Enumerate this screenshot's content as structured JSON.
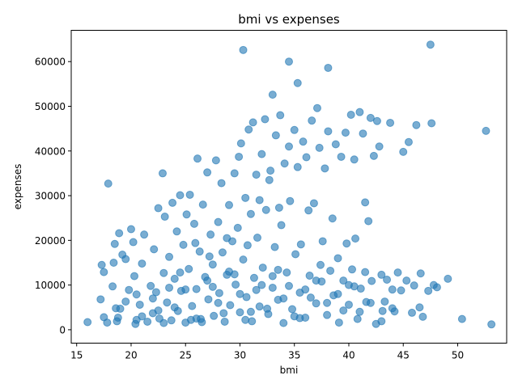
{
  "chart_data": {
    "type": "scatter",
    "title": "bmi vs expenses",
    "xlabel": "bmi",
    "ylabel": "expenses",
    "xlim": [
      14.5,
      54.5
    ],
    "ylim": [
      -3000,
      67000
    ],
    "xticks": [
      15,
      20,
      25,
      30,
      35,
      40,
      45,
      50
    ],
    "yticks": [
      0,
      10000,
      20000,
      30000,
      40000,
      50000,
      60000
    ],
    "ytick_labels": [
      "0",
      "10000",
      "20000",
      "30000",
      "40000",
      "50000",
      "60000"
    ],
    "grid": false,
    "marker_color": "#1f77b4",
    "marker_alpha": 0.6,
    "points": [
      [
        16.0,
        1700
      ],
      [
        17.2,
        6800
      ],
      [
        17.3,
        14500
      ],
      [
        17.5,
        12900
      ],
      [
        17.5,
        2800
      ],
      [
        17.8,
        1600
      ],
      [
        17.9,
        32700
      ],
      [
        18.3,
        9700
      ],
      [
        18.4,
        15000
      ],
      [
        18.5,
        19200
      ],
      [
        18.6,
        4800
      ],
      [
        18.7,
        1900
      ],
      [
        18.9,
        21600
      ],
      [
        19.0,
        4700
      ],
      [
        19.2,
        16800
      ],
      [
        19.5,
        15800
      ],
      [
        19.8,
        8900
      ],
      [
        20.0,
        22500
      ],
      [
        20.2,
        19600
      ],
      [
        20.3,
        12000
      ],
      [
        20.4,
        1300
      ],
      [
        20.5,
        7900
      ],
      [
        20.8,
        5600
      ],
      [
        21.0,
        14800
      ],
      [
        21.2,
        21300
      ],
      [
        21.5,
        1800
      ],
      [
        21.8,
        9800
      ],
      [
        22.0,
        3700
      ],
      [
        22.1,
        18000
      ],
      [
        22.3,
        8400
      ],
      [
        22.5,
        27200
      ],
      [
        22.6,
        2500
      ],
      [
        22.9,
        35000
      ],
      [
        23.0,
        12700
      ],
      [
        23.1,
        25300
      ],
      [
        23.3,
        6100
      ],
      [
        23.5,
        16300
      ],
      [
        23.7,
        2100
      ],
      [
        23.8,
        28400
      ],
      [
        24.0,
        11400
      ],
      [
        24.2,
        22000
      ],
      [
        24.3,
        4200
      ],
      [
        24.5,
        30100
      ],
      [
        24.6,
        8700
      ],
      [
        24.8,
        19000
      ],
      [
        25.0,
        1600
      ],
      [
        25.1,
        25800
      ],
      [
        25.3,
        13600
      ],
      [
        25.4,
        30200
      ],
      [
        25.6,
        5300
      ],
      [
        25.8,
        23700
      ],
      [
        26.0,
        9100
      ],
      [
        26.1,
        38300
      ],
      [
        26.3,
        17500
      ],
      [
        26.4,
        2400
      ],
      [
        26.6,
        28000
      ],
      [
        26.8,
        11800
      ],
      [
        27.0,
        35200
      ],
      [
        27.1,
        6800
      ],
      [
        27.3,
        21300
      ],
      [
        27.5,
        14600
      ],
      [
        27.6,
        3100
      ],
      [
        27.8,
        37900
      ],
      [
        28.0,
        24100
      ],
      [
        28.1,
        8200
      ],
      [
        28.3,
        32800
      ],
      [
        28.4,
        17300
      ],
      [
        28.6,
        1800
      ],
      [
        28.8,
        12300
      ],
      [
        29.0,
        27900
      ],
      [
        29.1,
        5500
      ],
      [
        29.3,
        19800
      ],
      [
        29.5,
        35000
      ],
      [
        29.6,
        10100
      ],
      [
        29.8,
        22800
      ],
      [
        30.0,
        3900
      ],
      [
        30.1,
        41700
      ],
      [
        30.3,
        62600
      ],
      [
        30.3,
        15700
      ],
      [
        30.5,
        29500
      ],
      [
        30.6,
        7300
      ],
      [
        30.8,
        44800
      ],
      [
        31.0,
        25900
      ],
      [
        31.1,
        1900
      ],
      [
        31.2,
        46400
      ],
      [
        31.3,
        11600
      ],
      [
        31.5,
        34700
      ],
      [
        31.6,
        20600
      ],
      [
        31.8,
        5200
      ],
      [
        32.0,
        39300
      ],
      [
        32.1,
        13900
      ],
      [
        32.3,
        47100
      ],
      [
        32.4,
        26800
      ],
      [
        32.6,
        3500
      ],
      [
        32.8,
        35600
      ],
      [
        33.0,
        52600
      ],
      [
        33.0,
        9400
      ],
      [
        33.2,
        18500
      ],
      [
        33.3,
        43500
      ],
      [
        33.5,
        6700
      ],
      [
        33.7,
        48000
      ],
      [
        33.8,
        23400
      ],
      [
        34.0,
        1500
      ],
      [
        34.1,
        37200
      ],
      [
        34.3,
        12800
      ],
      [
        34.5,
        60000
      ],
      [
        34.5,
        41000
      ],
      [
        34.6,
        28800
      ],
      [
        34.8,
        4600
      ],
      [
        35.0,
        44700
      ],
      [
        35.1,
        16900
      ],
      [
        35.3,
        55200
      ],
      [
        35.3,
        36400
      ],
      [
        35.5,
        8300
      ],
      [
        35.6,
        19100
      ],
      [
        35.8,
        42100
      ],
      [
        36.0,
        2700
      ],
      [
        36.1,
        38600
      ],
      [
        36.3,
        26700
      ],
      [
        36.4,
        12100
      ],
      [
        36.6,
        46800
      ],
      [
        36.8,
        28300
      ],
      [
        37.0,
        5900
      ],
      [
        37.1,
        49600
      ],
      [
        37.3,
        40700
      ],
      [
        37.4,
        14500
      ],
      [
        37.6,
        19800
      ],
      [
        37.8,
        36100
      ],
      [
        38.0,
        3300
      ],
      [
        38.1,
        58600
      ],
      [
        38.1,
        44400
      ],
      [
        38.3,
        13200
      ],
      [
        38.5,
        24900
      ],
      [
        38.6,
        7700
      ],
      [
        38.8,
        41500
      ],
      [
        39.0,
        16000
      ],
      [
        39.1,
        1600
      ],
      [
        39.3,
        38700
      ],
      [
        39.5,
        11000
      ],
      [
        39.7,
        44100
      ],
      [
        39.8,
        19300
      ],
      [
        40.0,
        5600
      ],
      [
        40.2,
        48100
      ],
      [
        40.3,
        13500
      ],
      [
        40.5,
        38100
      ],
      [
        40.6,
        20400
      ],
      [
        40.8,
        2400
      ],
      [
        41.0,
        48700
      ],
      [
        41.1,
        9200
      ],
      [
        41.3,
        43900
      ],
      [
        41.5,
        28500
      ],
      [
        41.6,
        6200
      ],
      [
        41.8,
        24300
      ],
      [
        42.0,
        47400
      ],
      [
        42.1,
        10900
      ],
      [
        42.3,
        38900
      ],
      [
        42.5,
        1300
      ],
      [
        42.6,
        46700
      ],
      [
        42.8,
        41000
      ],
      [
        43.0,
        12300
      ],
      [
        43.1,
        4200
      ],
      [
        43.3,
        6300
      ],
      [
        43.5,
        11200
      ],
      [
        43.8,
        46300
      ],
      [
        44.0,
        9000
      ],
      [
        44.2,
        4100
      ],
      [
        44.5,
        12800
      ],
      [
        44.8,
        8800
      ],
      [
        45.0,
        39800
      ],
      [
        45.3,
        11000
      ],
      [
        45.5,
        42000
      ],
      [
        45.8,
        3800
      ],
      [
        46.0,
        9900
      ],
      [
        46.2,
        45800
      ],
      [
        46.5,
        5000
      ],
      [
        46.6,
        12600
      ],
      [
        46.8,
        2900
      ],
      [
        47.3,
        8700
      ],
      [
        47.5,
        63800
      ],
      [
        47.6,
        46200
      ],
      [
        47.8,
        10000
      ],
      [
        48.1,
        9500
      ],
      [
        49.1,
        11400
      ],
      [
        50.4,
        2400
      ],
      [
        52.6,
        44500
      ],
      [
        53.1,
        1200
      ],
      [
        21.0,
        3000
      ],
      [
        22.0,
        7000
      ],
      [
        23.0,
        1500
      ],
      [
        24.0,
        5000
      ],
      [
        25.0,
        9000
      ],
      [
        26.0,
        2500
      ],
      [
        27.0,
        11000
      ],
      [
        28.0,
        6000
      ],
      [
        29.0,
        13000
      ],
      [
        30.0,
        8000
      ],
      [
        31.0,
        4000
      ],
      [
        32.0,
        10000
      ],
      [
        33.0,
        12000
      ],
      [
        34.0,
        7000
      ],
      [
        35.0,
        3000
      ],
      [
        36.0,
        9000
      ],
      [
        37.0,
        11000
      ],
      [
        38.0,
        6000
      ],
      [
        39.0,
        8000
      ],
      [
        40.0,
        10000
      ],
      [
        41.0,
        4000
      ],
      [
        42.0,
        6000
      ],
      [
        26.5,
        1700
      ],
      [
        27.5,
        9600
      ],
      [
        28.5,
        3700
      ],
      [
        29.5,
        12400
      ],
      [
        30.5,
        2200
      ],
      [
        31.5,
        8900
      ],
      [
        32.5,
        4700
      ],
      [
        33.5,
        13400
      ],
      [
        34.5,
        9800
      ],
      [
        35.5,
        2600
      ],
      [
        36.5,
        7200
      ],
      [
        37.5,
        10800
      ],
      [
        24.5,
        12800
      ],
      [
        25.5,
        2200
      ],
      [
        23.5,
        9400
      ],
      [
        22.5,
        4300
      ],
      [
        20.5,
        2200
      ],
      [
        19.5,
        6300
      ],
      [
        18.8,
        2700
      ],
      [
        39.5,
        4300
      ],
      [
        40.5,
        9700
      ],
      [
        41.5,
        12900
      ],
      [
        43.0,
        1900
      ],
      [
        44.0,
        4800
      ],
      [
        31.8,
        29000
      ],
      [
        32.7,
        33500
      ],
      [
        28.8,
        20500
      ],
      [
        27.2,
        16400
      ],
      [
        30.7,
        18900
      ],
      [
        33.6,
        27300
      ],
      [
        25.9,
        19400
      ],
      [
        29.9,
        38700
      ]
    ]
  }
}
